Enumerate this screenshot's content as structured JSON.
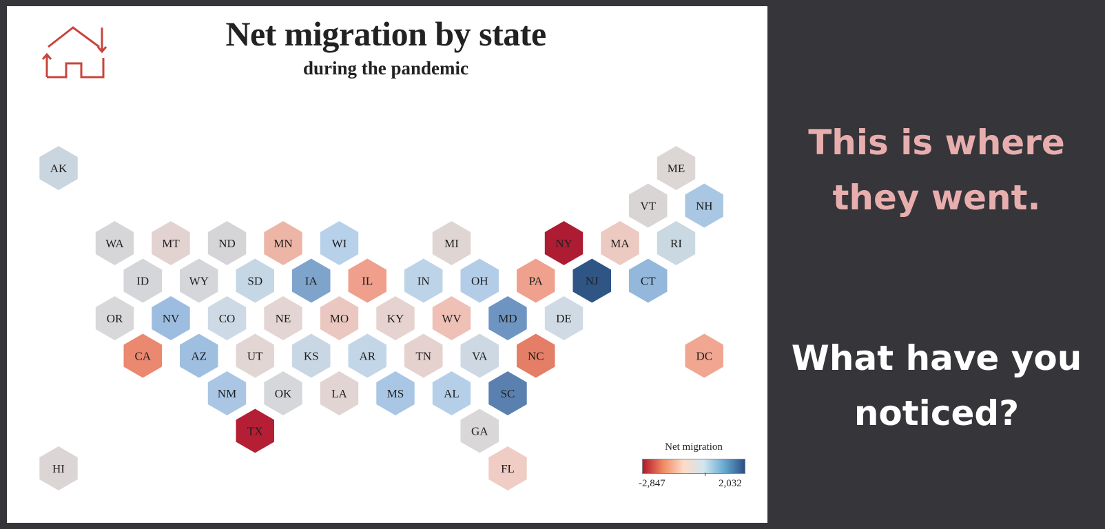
{
  "title": "Net migration by state",
  "subtitle": "during the pandemic",
  "side": {
    "headline": "This is where they went.",
    "question": "What have you noticed?"
  },
  "logo": {
    "icon": "house-arrows-icon",
    "color": "#c8443a"
  },
  "legend": {
    "title": "Net migration",
    "min_label": "-2,847",
    "max_label": "2,032",
    "colors": [
      "#b2182b",
      "#ef8a62",
      "#fddbc7",
      "#d1e5f0",
      "#67a9cf",
      "#2b4f85"
    ]
  },
  "states": [
    {
      "abbr": "AK",
      "row": 0,
      "col": 0,
      "color": "#c9d6df"
    },
    {
      "abbr": "ME",
      "row": 0,
      "col": 11,
      "color": "#dcd6d4"
    },
    {
      "abbr": "VT",
      "row": 1,
      "col": 10,
      "color": "#d9d5d4"
    },
    {
      "abbr": "NH",
      "row": 1,
      "col": 11,
      "color": "#a9c7e3"
    },
    {
      "abbr": "WA",
      "row": 2,
      "col": 1,
      "color": "#d6d6d8"
    },
    {
      "abbr": "MT",
      "row": 2,
      "col": 2,
      "color": "#e2d3d1"
    },
    {
      "abbr": "ND",
      "row": 2,
      "col": 3,
      "color": "#d5d5d8"
    },
    {
      "abbr": "MN",
      "row": 2,
      "col": 4,
      "color": "#edb5a5"
    },
    {
      "abbr": "WI",
      "row": 2,
      "col": 5,
      "color": "#b7d1ea"
    },
    {
      "abbr": "MI",
      "row": 2,
      "col": 7,
      "color": "#dfd5d3"
    },
    {
      "abbr": "NY",
      "row": 2,
      "col": 9,
      "color": "#ad1c33"
    },
    {
      "abbr": "MA",
      "row": 2,
      "col": 10,
      "color": "#ecc9c1"
    },
    {
      "abbr": "RI",
      "row": 2,
      "col": 11,
      "color": "#cad8e2"
    },
    {
      "abbr": "ID",
      "row": 3,
      "col": 1,
      "color": "#d5d6da"
    },
    {
      "abbr": "WY",
      "row": 3,
      "col": 2,
      "color": "#d5d6d9"
    },
    {
      "abbr": "SD",
      "row": 3,
      "col": 3,
      "color": "#c5d6e4"
    },
    {
      "abbr": "IA",
      "row": 3,
      "col": 4,
      "color": "#7fa4cc"
    },
    {
      "abbr": "IL",
      "row": 3,
      "col": 5,
      "color": "#ef9f8c"
    },
    {
      "abbr": "IN",
      "row": 3,
      "col": 6,
      "color": "#bdd3e8"
    },
    {
      "abbr": "OH",
      "row": 3,
      "col": 7,
      "color": "#b3cde8"
    },
    {
      "abbr": "PA",
      "row": 3,
      "col": 8,
      "color": "#efa18e"
    },
    {
      "abbr": "NJ",
      "row": 3,
      "col": 9,
      "color": "#2f5585"
    },
    {
      "abbr": "CT",
      "row": 3,
      "col": 10,
      "color": "#94b7dc"
    },
    {
      "abbr": "OR",
      "row": 4,
      "col": 1,
      "color": "#d8d8da"
    },
    {
      "abbr": "NV",
      "row": 4,
      "col": 2,
      "color": "#9dbde0"
    },
    {
      "abbr": "CO",
      "row": 4,
      "col": 3,
      "color": "#cdd9e4"
    },
    {
      "abbr": "NE",
      "row": 4,
      "col": 4,
      "color": "#e3d5d3"
    },
    {
      "abbr": "MO",
      "row": 4,
      "col": 5,
      "color": "#eac7c0"
    },
    {
      "abbr": "KY",
      "row": 4,
      "col": 6,
      "color": "#e6d2ce"
    },
    {
      "abbr": "WV",
      "row": 4,
      "col": 7,
      "color": "#eec0b6"
    },
    {
      "abbr": "MD",
      "row": 4,
      "col": 8,
      "color": "#6e95c2"
    },
    {
      "abbr": "DE",
      "row": 4,
      "col": 9,
      "color": "#cfdae4"
    },
    {
      "abbr": "CA",
      "row": 5,
      "col": 1,
      "color": "#ea8870"
    },
    {
      "abbr": "AZ",
      "row": 5,
      "col": 2,
      "color": "#9fbfe1"
    },
    {
      "abbr": "UT",
      "row": 5,
      "col": 3,
      "color": "#e2d6d4"
    },
    {
      "abbr": "KS",
      "row": 5,
      "col": 4,
      "color": "#c9d7e4"
    },
    {
      "abbr": "AR",
      "row": 5,
      "col": 5,
      "color": "#c3d6e8"
    },
    {
      "abbr": "TN",
      "row": 5,
      "col": 6,
      "color": "#e5d2ce"
    },
    {
      "abbr": "VA",
      "row": 5,
      "col": 7,
      "color": "#cdd8e3"
    },
    {
      "abbr": "NC",
      "row": 5,
      "col": 8,
      "color": "#e57e66"
    },
    {
      "abbr": "DC",
      "row": 5,
      "col": 11,
      "color": "#f0a690"
    },
    {
      "abbr": "NM",
      "row": 6,
      "col": 3,
      "color": "#aac6e4"
    },
    {
      "abbr": "OK",
      "row": 6,
      "col": 4,
      "color": "#d6d7da"
    },
    {
      "abbr": "LA",
      "row": 6,
      "col": 5,
      "color": "#e1d4d3"
    },
    {
      "abbr": "MS",
      "row": 6,
      "col": 6,
      "color": "#a9c6e4"
    },
    {
      "abbr": "AL",
      "row": 6,
      "col": 7,
      "color": "#b6cfe8"
    },
    {
      "abbr": "SC",
      "row": 6,
      "col": 8,
      "color": "#5a80af"
    },
    {
      "abbr": "TX",
      "row": 7,
      "col": 3,
      "color": "#b41f35"
    },
    {
      "abbr": "GA",
      "row": 7,
      "col": 7,
      "color": "#d9d7d8"
    },
    {
      "abbr": "HI",
      "row": 8,
      "col": 0,
      "color": "#dbd6d5"
    },
    {
      "abbr": "FL",
      "row": 8,
      "col": 8,
      "color": "#efcdc4"
    }
  ]
}
